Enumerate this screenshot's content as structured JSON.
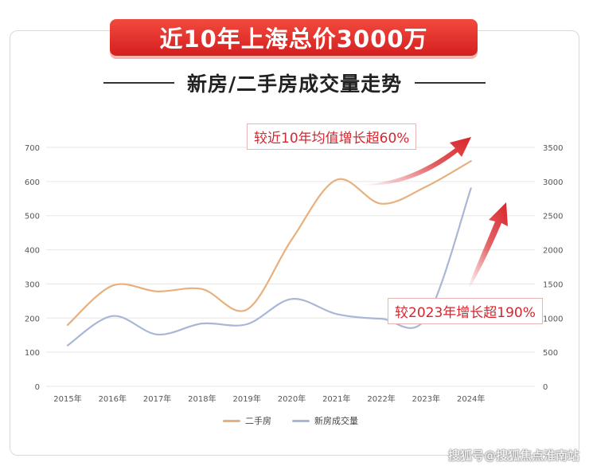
{
  "header": {
    "banner": "近10年上海总价3000万",
    "subtitle": "新房/二手房成交量走势"
  },
  "callouts": {
    "top": "较近10年均值增长超60%",
    "bottom": "较2023年增长超190%"
  },
  "watermark": "搜狐号@搜狐焦点淮南站",
  "colors": {
    "banner": "#e0302a",
    "second_hand": "#e8b07e",
    "new_house": "#a9b7d6",
    "arrow": "#d8252a"
  },
  "chart_data": {
    "type": "line",
    "categories": [
      "2015年",
      "2016年",
      "2017年",
      "2018年",
      "2019年",
      "2020年",
      "2021年",
      "2022年",
      "2023年",
      "2024年"
    ],
    "y_left": {
      "ylim": [
        0,
        700
      ],
      "ticks": [
        0,
        100,
        200,
        300,
        400,
        500,
        600,
        700
      ]
    },
    "y_right": {
      "ylim": [
        0,
        3500
      ],
      "ticks": [
        0,
        500,
        1000,
        1500,
        2000,
        2500,
        3000,
        3500
      ]
    },
    "series": [
      {
        "name": "二手房",
        "axis": "left",
        "values": [
          180,
          295,
          278,
          285,
          225,
          430,
          605,
          535,
          585,
          660
        ]
      },
      {
        "name": "新房成交量",
        "axis": "right",
        "values": [
          600,
          1030,
          760,
          920,
          910,
          1280,
          1060,
          990,
          1000,
          2900
        ]
      }
    ],
    "grid": true,
    "legend": "bottom"
  }
}
